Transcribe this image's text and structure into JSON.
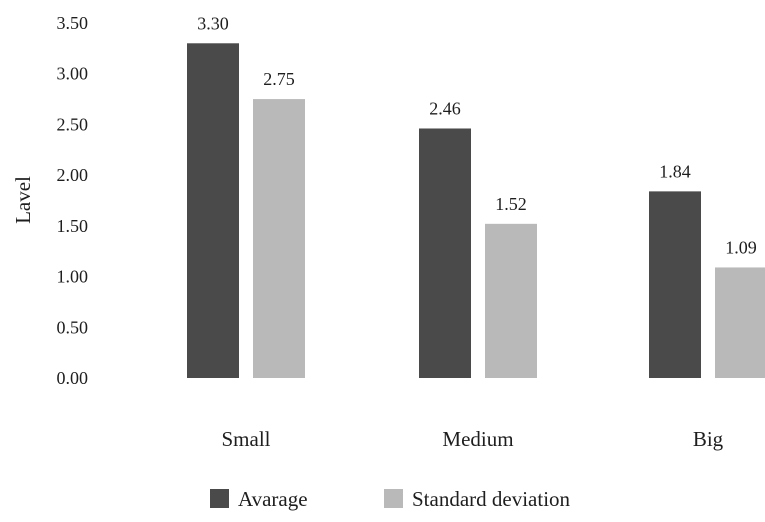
{
  "chart_data": {
    "type": "bar",
    "categories": [
      "Small",
      "Medium",
      "Big"
    ],
    "series": [
      {
        "name": "Avarage",
        "values": [
          3.3,
          2.46,
          1.84
        ],
        "color": "#4a4a4a"
      },
      {
        "name": "Standard deviation",
        "values": [
          2.75,
          1.52,
          1.09
        ],
        "color": "#b9b9b9"
      }
    ],
    "data_labels": [
      [
        "3.30",
        "2.46",
        "1.84"
      ],
      [
        "2.75",
        "1.52",
        "1.09"
      ]
    ],
    "title": "",
    "xlabel": "",
    "ylabel": "Lavel",
    "ylim": [
      0,
      3.5
    ],
    "y_ticks": [
      "0.00",
      "0.50",
      "1.00",
      "1.50",
      "2.00",
      "2.50",
      "3.00",
      "3.50"
    ],
    "grid": false,
    "legend_position": "bottom-center"
  }
}
